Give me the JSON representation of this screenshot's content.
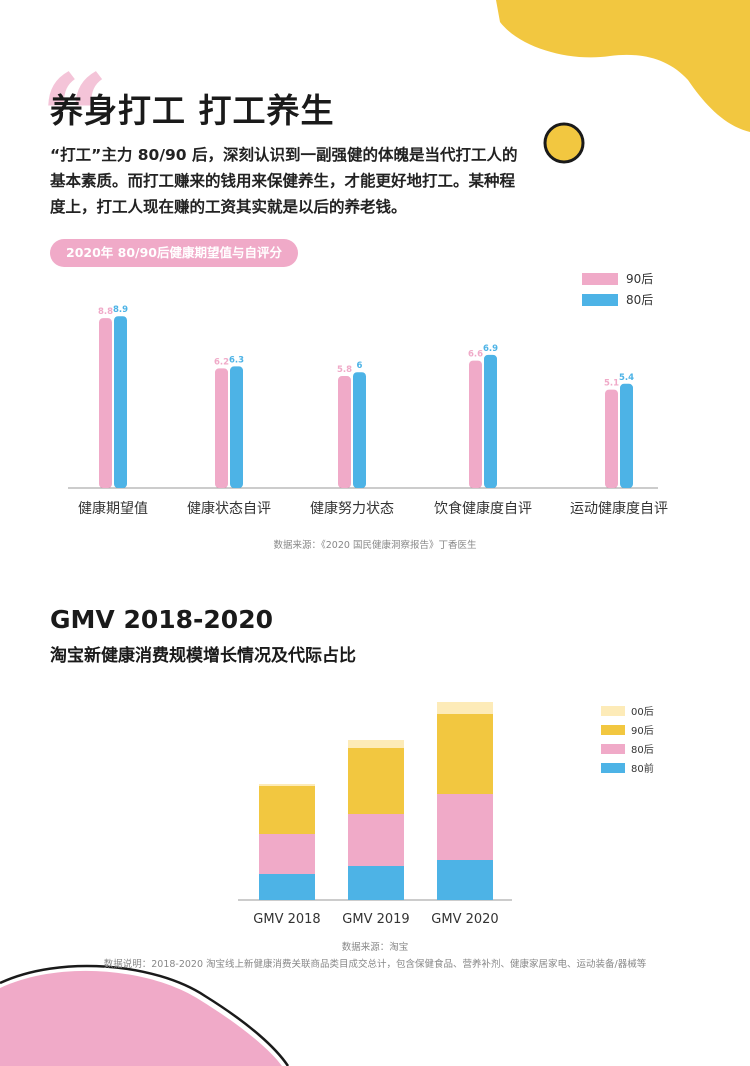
{
  "header": {
    "title": "养身打工  打工养生",
    "intro": "“打工”主力 80/90 后，深刻认识到一副强健的体魄是当代打工人的基本素质。而打工赚来的钱用来保健养生，才能更好地打工。某种程度上，打工人现在赚的工资其实就是以后的养老钱。"
  },
  "chart1_title": "2020年 80/90后健康期望值与自评分",
  "chart1_source": "数据来源：《2020 国民健康洞察报告》丁香医生",
  "section2": {
    "title": "GMV 2018-2020",
    "subtitle": "淘宝新健康消费规模增长情况及代际占比",
    "source": "数据来源：淘宝",
    "note": "数据说明：2018-2020 淘宝线上新健康消费关联商品类目成交总计，包含保健食品、营养补剂、健康家居家电、运动装备/器械等"
  },
  "colors": {
    "pink": "#f0aac8",
    "blue": "#4db3e6",
    "yellow": "#f2c740",
    "cream": "#fdebb8",
    "axis": "#999999"
  },
  "chart_data": [
    {
      "type": "bar",
      "categories": [
        "健康期望值",
        "健康状态自评",
        "健康努力状态",
        "饮食健康度自评",
        "运动健康度自评"
      ],
      "series": [
        {
          "name": "90后",
          "values": [
            8.8,
            6.2,
            5.8,
            6.6,
            5.1
          ]
        },
        {
          "name": "80后",
          "values": [
            8.9,
            6.3,
            6.0,
            6.9,
            5.4
          ]
        }
      ],
      "ylim": [
        0,
        10
      ],
      "legend": "top-right",
      "data_labels": true
    },
    {
      "type": "bar",
      "stacked": true,
      "categories": [
        "GMV 2018",
        "GMV 2019",
        "GMV 2020"
      ],
      "series": [
        {
          "name": "80前",
          "values": [
            13,
            17,
            20
          ]
        },
        {
          "name": "80后",
          "values": [
            20,
            26,
            33
          ]
        },
        {
          "name": "90后",
          "values": [
            24,
            33,
            40
          ]
        },
        {
          "name": "00后",
          "values": [
            1,
            4,
            6
          ]
        }
      ],
      "legend_order": [
        "00后",
        "90后",
        "80后",
        "80前"
      ],
      "ylim": [
        0,
        100
      ],
      "legend": "top-right"
    }
  ]
}
